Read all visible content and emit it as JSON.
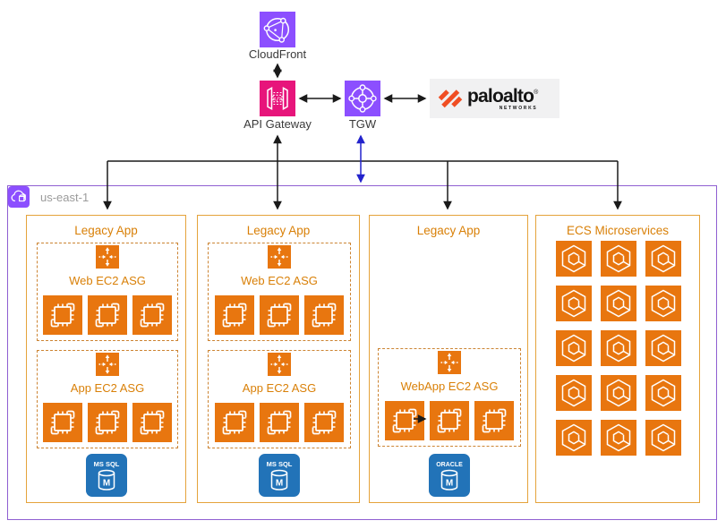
{
  "topology": {
    "cloudfront": {
      "label": "CloudFront"
    },
    "api_gateway": {
      "label": "API Gateway",
      "code_glyph": "</>"
    },
    "tgw": {
      "label": "TGW"
    },
    "paloalto": {
      "brand": "paloalto",
      "registered": "®",
      "sub": "NETWORKS"
    }
  },
  "region": {
    "label": "us-east-1",
    "columns": [
      {
        "title": "Legacy App",
        "groups": [
          {
            "label": "Web EC2 ASG",
            "instance_count": 3
          },
          {
            "label": "App EC2 ASG",
            "instance_count": 3
          }
        ],
        "database": {
          "label": "MS SQL",
          "letter": "M"
        }
      },
      {
        "title": "Legacy App",
        "groups": [
          {
            "label": "Web EC2 ASG",
            "instance_count": 3
          },
          {
            "label": "App EC2 ASG",
            "instance_count": 3
          }
        ],
        "database": {
          "label": "MS SQL",
          "letter": "M"
        }
      },
      {
        "title": "Legacy App",
        "groups": [
          {
            "label": "WebApp EC2 ASG",
            "instance_count": 3
          }
        ],
        "database": {
          "label": "ORACLE",
          "letter": "M"
        }
      },
      {
        "title": "ECS Microservices",
        "ecs_instance_count": 15
      }
    ]
  },
  "colors": {
    "service_orange": "#E8760F",
    "purple": "#8C4FFF",
    "api_gateway_pink": "#E7157B",
    "database_blue": "#2273B8",
    "region_border_purple": "#8F5FD1",
    "column_border_orange": "#E5A33B",
    "dashed_border_orange": "#CC8433",
    "label_orange": "#D98008",
    "connector_black": "#1A1A1A",
    "connector_blue": "#2323CC",
    "paloalto_red": "#F04E23"
  }
}
